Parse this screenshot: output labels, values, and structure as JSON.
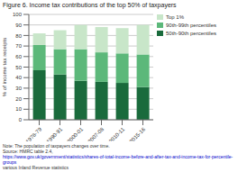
{
  "chart_data": {
    "type": "bar",
    "stacked": true,
    "title": "Figure 6. Income tax contributions of the top 50% of taxpayers",
    "y_label": "% of income tax receipts",
    "categories": [
      "1978-79",
      "1990-91",
      "2000-01",
      "2007-08",
      "2010-11",
      "2015-16"
    ],
    "series": [
      {
        "name": "50th-90th percentiles",
        "color": "#1a6b3c",
        "values": [
          47,
          43,
          37,
          36,
          35,
          31
        ]
      },
      {
        "name": "90th-99th percentiles",
        "color": "#5cb87a",
        "values": [
          24,
          24,
          30,
          28,
          28,
          31
        ]
      },
      {
        "name": "Top 1%",
        "color": "#c8e6c9",
        "values": [
          11,
          18,
          23,
          24,
          24,
          28
        ]
      }
    ],
    "ylim": [
      0,
      100
    ],
    "yticks": [
      0,
      10,
      20,
      30,
      40,
      50,
      60,
      70,
      80,
      90,
      100
    ],
    "grid": true,
    "legend": "right",
    "annotations": [
      "Note: The population of taxpayers changes over time.",
      "Source: HMRC table 2.4,",
      "https://www.gov.uk/government/statistics/shares-of-total-income-before-and-after-tax-and-income-tax-for-percentile-groups",
      "various Inland Revenue statistics"
    ]
  }
}
